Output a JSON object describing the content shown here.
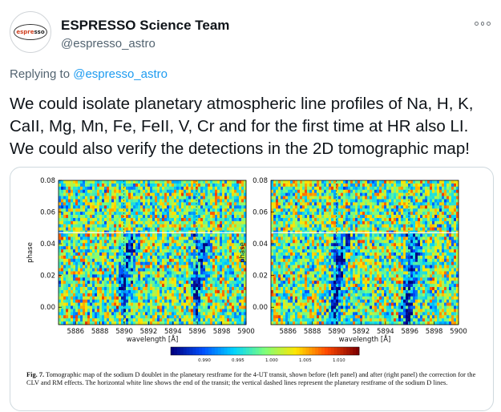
{
  "author": {
    "name": "ESPRESSO Science Team",
    "handle": "@espresso_astro",
    "logo_text_a": "espre",
    "logo_text_b": "sso"
  },
  "reply": {
    "prefix": "Replying to ",
    "target": "@espresso_astro"
  },
  "tweet": {
    "lines": [
      "We could isolate planetary atmospheric line profiles of Na, H, K,",
      "CaII, Mg, Mn, Fe, FeII, V, Cr and for the first time at HR also LI.",
      "We could also verify the detections in the 2D tomographic map!"
    ]
  },
  "figure": {
    "ylabel": "phase",
    "xlabel": "wavelength [Å]",
    "caption_label": "Fig. 7.",
    "caption_text": " Tomographic map of the sodium D doublet in the planetary restframe for the 4-UT transit, shown before (left panel) and after (right panel) the correction for the CLV and RM effects. The horizontal white line shows the end of the transit; the vertical dashed lines represent the planetary restframe of the sodium D lines."
  },
  "chart_data": [
    {
      "type": "heatmap",
      "panel": "left",
      "xlabel": "wavelength [Å]",
      "ylabel": "phase",
      "xlim": [
        5884.6,
        5900
      ],
      "ylim": [
        -0.011,
        0.08
      ],
      "x_ticks": [
        5886,
        5888,
        5890,
        5892,
        5894,
        5896,
        5898,
        5900
      ],
      "y_ticks": [
        0.0,
        0.02,
        0.04,
        0.06,
        0.08
      ],
      "y_tick_labels": [
        "0.00",
        "0.02",
        "0.04",
        "0.06",
        "0.08"
      ],
      "transit_end_phase": 0.047,
      "dashed_lines_x": [
        5889.95,
        5895.92
      ],
      "colorbar_ticks": [
        "0.990",
        "0.995",
        "1.000",
        "1.005",
        "1.010"
      ],
      "colorbar_range": [
        0.985,
        1.013
      ],
      "colors": [
        "#00007f",
        "#0050ff",
        "#00d4ff",
        "#7dff7a",
        "#ffe600",
        "#ff4800",
        "#7f0000"
      ]
    },
    {
      "type": "heatmap",
      "panel": "right",
      "xlabel": "wavelength [Å]",
      "ylabel": "phase",
      "xlim": [
        5884.6,
        5900
      ],
      "ylim": [
        -0.011,
        0.08
      ],
      "x_ticks": [
        5886,
        5888,
        5890,
        5892,
        5894,
        5896,
        5898,
        5900
      ],
      "y_ticks": [
        0.0,
        0.02,
        0.04,
        0.06,
        0.08
      ],
      "y_tick_labels": [
        "0.00",
        "0.02",
        "0.04",
        "0.06",
        "0.08"
      ],
      "transit_end_phase": 0.047,
      "dashed_lines_x": [
        5889.95,
        5895.92
      ]
    }
  ]
}
